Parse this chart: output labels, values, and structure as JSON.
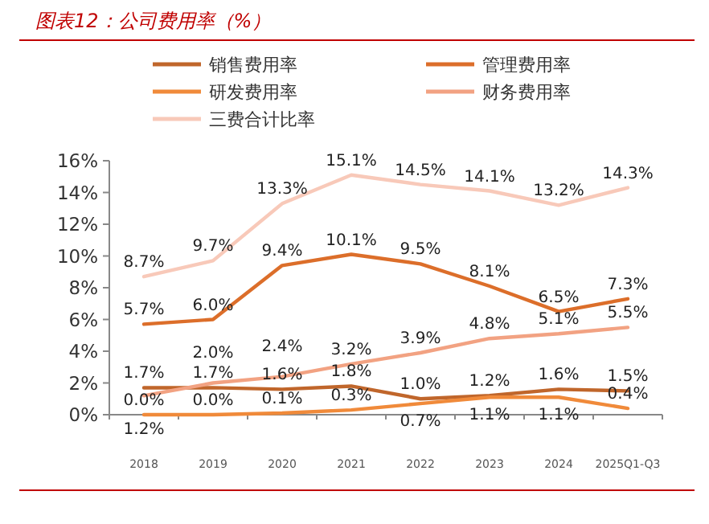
{
  "chart_data": {
    "type": "line",
    "title": "图表12：公司费用率（%）",
    "categories": [
      "2018",
      "2019",
      "2020",
      "2021",
      "2022",
      "2023",
      "2024",
      "2025Q1-Q3"
    ],
    "series": [
      {
        "name": "销售费用率",
        "color": "#c0662b",
        "values": [
          1.7,
          1.7,
          1.6,
          1.8,
          1.0,
          1.2,
          1.6,
          1.5
        ],
        "value_labels": [
          "1.7%",
          "1.7%",
          "1.6%",
          "1.8%",
          "1.0%",
          "1.2%",
          "1.6%",
          "1.5%"
        ]
      },
      {
        "name": "管理费用率",
        "color": "#dc6e2a",
        "values": [
          5.7,
          6.0,
          9.4,
          10.1,
          9.5,
          8.1,
          6.5,
          7.3
        ],
        "value_labels": [
          "5.7%",
          "6.0%",
          "9.4%",
          "10.1%",
          "9.5%",
          "8.1%",
          "6.5%",
          "7.3%"
        ]
      },
      {
        "name": "研发费用率",
        "color": "#f08a3a",
        "values": [
          0.0,
          0.0,
          0.1,
          0.3,
          0.7,
          1.1,
          1.1,
          0.4
        ],
        "value_labels": [
          "0.0%",
          "0.0%",
          "0.1%",
          "0.3%",
          "0.7%",
          "1.1%",
          "1.1%",
          "0.4%"
        ]
      },
      {
        "name": "财务费用率",
        "color": "#f2a282",
        "values": [
          1.2,
          2.0,
          2.4,
          3.2,
          3.9,
          4.8,
          5.1,
          5.5
        ],
        "value_labels": [
          "1.2%",
          "2.0%",
          "2.4%",
          "3.2%",
          "3.9%",
          "4.8%",
          "5.1%",
          "5.5%"
        ]
      },
      {
        "name": "三费合计比率",
        "color": "#f8c9b9",
        "values": [
          8.7,
          9.7,
          13.3,
          15.1,
          14.5,
          14.1,
          13.2,
          14.3
        ],
        "value_labels": [
          "8.7%",
          "9.7%",
          "13.3%",
          "15.1%",
          "14.5%",
          "14.1%",
          "13.2%",
          "14.3%"
        ]
      }
    ],
    "ylim": [
      0,
      16
    ],
    "yticks": [
      {
        "value": 0,
        "label": "0%"
      },
      {
        "value": 2,
        "label": "2%"
      },
      {
        "value": 4,
        "label": "4%"
      },
      {
        "value": 6,
        "label": "6%"
      },
      {
        "value": 8,
        "label": "8%"
      },
      {
        "value": 10,
        "label": "10%"
      },
      {
        "value": 12,
        "label": "12%"
      },
      {
        "value": 14,
        "label": "14%"
      },
      {
        "value": 16,
        "label": "16%"
      }
    ],
    "legend": "top",
    "grid": false,
    "marker": "none",
    "line_style": "solid"
  }
}
